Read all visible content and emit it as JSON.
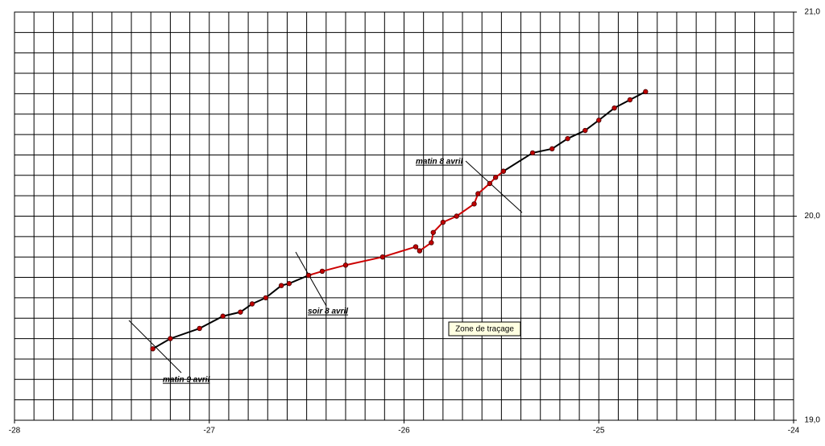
{
  "chart_data": {
    "type": "line",
    "xlim": [
      -28,
      -24
    ],
    "xticks": [
      -28,
      -27,
      -26,
      -25,
      -24
    ],
    "ylim": [
      19,
      21
    ],
    "yticks": [
      {
        "value": 19,
        "label": "19,0"
      },
      {
        "value": 20,
        "label": "20,0"
      },
      {
        "value": 21,
        "label": "21,0"
      }
    ],
    "grid": true,
    "grid_step_x": 0.1,
    "grid_step_y": 0.1,
    "marker_color": "#c00000",
    "series": [
      {
        "color": "#000000",
        "x": [
          -27.29,
          -27.2,
          -27.05,
          -26.93,
          -26.84,
          -26.78,
          -26.71,
          -26.63,
          -26.59,
          -26.49
        ],
        "values": [
          19.35,
          19.4,
          19.45,
          19.51,
          19.53,
          19.57,
          19.6,
          19.66,
          19.67,
          19.71
        ]
      },
      {
        "color": "#cc0000",
        "x": [
          -26.49,
          -26.42,
          -26.3,
          -26.11,
          -25.94,
          -25.92,
          -25.86,
          -25.85,
          -25.8,
          -25.73,
          -25.64,
          -25.62,
          -25.56,
          -25.53,
          -25.49
        ],
        "values": [
          19.71,
          19.73,
          19.76,
          19.8,
          19.85,
          19.83,
          19.87,
          19.92,
          19.97,
          20.0,
          20.06,
          20.11,
          20.16,
          20.19,
          20.22
        ]
      },
      {
        "color": "#000000",
        "x": [
          -25.49,
          -25.34,
          -25.24,
          -25.16,
          -25.07,
          -25.0,
          -24.92,
          -24.84,
          -24.76
        ],
        "values": [
          20.22,
          20.31,
          20.33,
          20.38,
          20.42,
          20.47,
          20.53,
          20.57,
          20.61
        ]
      }
    ],
    "annotations": [
      "matin 8 avril",
      "soir 8 avril",
      "matin 9 avril"
    ],
    "tooltip": "Zone de traçage"
  }
}
